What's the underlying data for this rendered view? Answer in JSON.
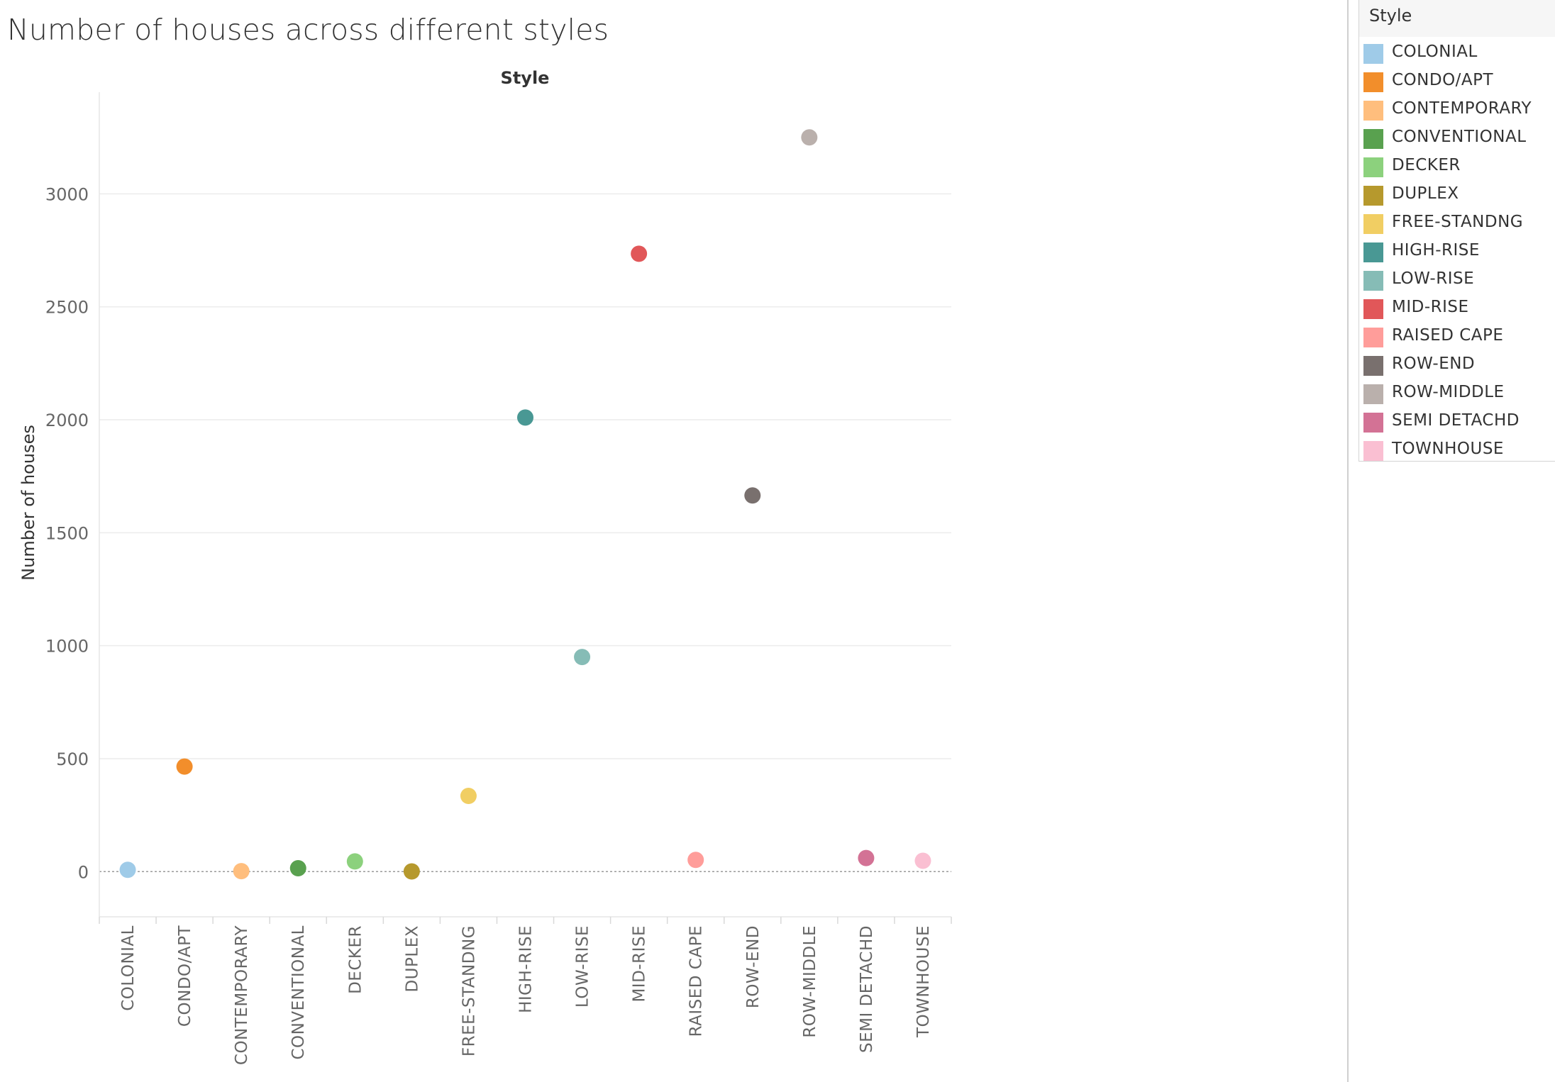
{
  "title": "Number of houses across different styles",
  "legend": {
    "title": "Style",
    "items": [
      {
        "label": "COLONIAL",
        "color": "#9fcbe8"
      },
      {
        "label": "CONDO/APT",
        "color": "#f28e2b"
      },
      {
        "label": "CONTEMPORARY",
        "color": "#ffbe7d"
      },
      {
        "label": "CONVENTIONAL",
        "color": "#59a14f"
      },
      {
        "label": "DECKER",
        "color": "#8cd17d"
      },
      {
        "label": "DUPLEX",
        "color": "#b6992d"
      },
      {
        "label": "FREE-STANDNG",
        "color": "#f1ce63"
      },
      {
        "label": "HIGH-RISE",
        "color": "#499894"
      },
      {
        "label": "LOW-RISE",
        "color": "#86bcb6"
      },
      {
        "label": "MID-RISE",
        "color": "#e15759"
      },
      {
        "label": "RAISED CAPE",
        "color": "#ff9d9a"
      },
      {
        "label": "ROW-END",
        "color": "#79706e"
      },
      {
        "label": "ROW-MIDDLE",
        "color": "#bab0ac"
      },
      {
        "label": "SEMI DETACHD",
        "color": "#d37295"
      },
      {
        "label": "TOWNHOUSE",
        "color": "#fabfd2"
      }
    ]
  },
  "chart_data": {
    "type": "scatter",
    "title": "Number of houses across different styles",
    "column_header": "Style",
    "ylabel": "Number of houses",
    "categories": [
      "COLONIAL",
      "CONDO/APT",
      "CONTEMPORARY",
      "CONVENTIONAL",
      "DECKER",
      "DUPLEX",
      "FREE-STANDNG",
      "HIGH-RISE",
      "LOW-RISE",
      "MID-RISE",
      "RAISED CAPE",
      "ROW-END",
      "ROW-MIDDLE",
      "SEMI DETACHD",
      "TOWNHOUSE"
    ],
    "values": [
      8,
      465,
      2,
      15,
      45,
      1,
      335,
      2010,
      950,
      2735,
      52,
      1665,
      3250,
      60,
      48
    ],
    "colors": [
      "#9fcbe8",
      "#f28e2b",
      "#ffbe7d",
      "#59a14f",
      "#8cd17d",
      "#b6992d",
      "#f1ce63",
      "#499894",
      "#86bcb6",
      "#e15759",
      "#ff9d9a",
      "#79706e",
      "#bab0ac",
      "#d37295",
      "#fabfd2"
    ],
    "y_ticks": [
      0,
      500,
      1000,
      1500,
      2000,
      2500,
      3000
    ],
    "ylim": [
      -200,
      3450
    ],
    "grid": true,
    "legend_position": "right"
  }
}
